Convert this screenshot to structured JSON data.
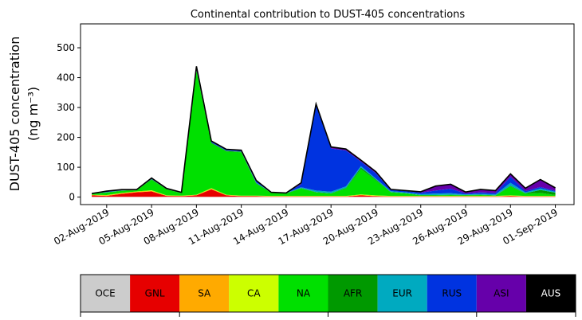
{
  "chart_data": {
    "type": "area",
    "title": "Continental contribution to DUST-405 concentrations",
    "ylabel": "DUST-405 concentration",
    "ylabel_unit": "(ng m⁻³)",
    "xlabel": "",
    "ylim": [
      -25,
      580
    ],
    "yticks": [
      0,
      100,
      200,
      300,
      400,
      500
    ],
    "xlim": [
      "2019-07-31T06:00",
      "2019-09-02T06:00"
    ],
    "xticks": [
      "02-Aug-2019",
      "05-Aug-2019",
      "08-Aug-2019",
      "11-Aug-2019",
      "14-Aug-2019",
      "17-Aug-2019",
      "20-Aug-2019",
      "23-Aug-2019",
      "26-Aug-2019",
      "29-Aug-2019",
      "01-Sep-2019"
    ],
    "x": [
      "2019-08-01",
      "2019-08-02",
      "2019-08-03",
      "2019-08-04",
      "2019-08-05",
      "2019-08-06",
      "2019-08-07",
      "2019-08-08",
      "2019-08-09",
      "2019-08-10",
      "2019-08-11",
      "2019-08-12",
      "2019-08-13",
      "2019-08-14",
      "2019-08-15",
      "2019-08-16",
      "2019-08-17",
      "2019-08-18",
      "2019-08-19",
      "2019-08-20",
      "2019-08-21",
      "2019-08-22",
      "2019-08-23",
      "2019-08-24",
      "2019-08-25",
      "2019-08-26",
      "2019-08-27",
      "2019-08-28",
      "2019-08-29",
      "2019-08-30",
      "2019-08-31",
      "2019-09-01"
    ],
    "series": [
      {
        "name": "OCE",
        "color": "#cccccc",
        "values": [
          1,
          1,
          1,
          1,
          1,
          1,
          1,
          1,
          1,
          1,
          1,
          1,
          1,
          1,
          1,
          1,
          1,
          1,
          1,
          1,
          1,
          1,
          1,
          1,
          1,
          1,
          1,
          1,
          1,
          1,
          1,
          1
        ]
      },
      {
        "name": "GNL",
        "color": "#e60000",
        "values": [
          5,
          3,
          10,
          15,
          18,
          3,
          2,
          5,
          25,
          5,
          2,
          2,
          1,
          1,
          1,
          1,
          1,
          1,
          5,
          2,
          1,
          1,
          1,
          1,
          1,
          1,
          1,
          1,
          2,
          1,
          1,
          1
        ]
      },
      {
        "name": "SA",
        "color": "#ffaa00",
        "values": [
          1,
          2,
          2,
          2,
          2,
          1,
          1,
          1,
          2,
          1,
          1,
          1,
          1,
          1,
          1,
          1,
          1,
          1,
          2,
          1,
          1,
          1,
          1,
          1,
          1,
          1,
          1,
          1,
          2,
          1,
          1,
          1
        ]
      },
      {
        "name": "CA",
        "color": "#ccff00",
        "values": [
          1,
          1,
          1,
          1,
          2,
          1,
          1,
          1,
          2,
          1,
          1,
          1,
          1,
          1,
          1,
          1,
          1,
          1,
          1,
          2,
          1,
          1,
          1,
          1,
          1,
          1,
          1,
          1,
          1,
          1,
          1,
          1
        ]
      },
      {
        "name": "NA",
        "color": "#00e000",
        "values": [
          3,
          8,
          7,
          4,
          35,
          20,
          8,
          415,
          150,
          145,
          145,
          40,
          10,
          8,
          25,
          12,
          8,
          25,
          85,
          50,
          12,
          8,
          2,
          2,
          3,
          2,
          3,
          1,
          30,
          8,
          10,
          3
        ]
      },
      {
        "name": "AFR",
        "color": "#009900",
        "values": [
          1,
          1,
          1,
          1,
          2,
          1,
          1,
          3,
          2,
          2,
          2,
          2,
          1,
          1,
          1,
          1,
          1,
          2,
          5,
          3,
          1,
          1,
          1,
          1,
          1,
          1,
          1,
          1,
          2,
          1,
          10,
          8
        ]
      },
      {
        "name": "EUR",
        "color": "#00aac0",
        "values": [
          0,
          1,
          1,
          1,
          1,
          1,
          1,
          2,
          1,
          1,
          1,
          2,
          1,
          1,
          3,
          5,
          5,
          5,
          5,
          3,
          3,
          3,
          3,
          5,
          5,
          2,
          3,
          3,
          10,
          3,
          5,
          3
        ]
      },
      {
        "name": "RUS",
        "color": "#0033e0",
        "values": [
          0,
          2,
          2,
          0,
          2,
          1,
          1,
          5,
          3,
          2,
          2,
          5,
          0,
          0,
          10,
          285,
          145,
          120,
          15,
          18,
          4,
          4,
          5,
          10,
          15,
          3,
          5,
          5,
          20,
          4,
          5,
          3
        ]
      },
      {
        "name": "ASI",
        "color": "#6600aa",
        "values": [
          0,
          1,
          0,
          0,
          1,
          0,
          0,
          5,
          2,
          2,
          2,
          2,
          0,
          0,
          5,
          5,
          5,
          5,
          5,
          5,
          2,
          2,
          3,
          15,
          15,
          5,
          10,
          8,
          10,
          10,
          25,
          10
        ]
      },
      {
        "name": "AUS",
        "color": "#000000",
        "values": [
          0,
          0,
          0,
          0,
          0,
          0,
          0,
          0,
          0,
          0,
          0,
          0,
          0,
          0,
          0,
          0,
          0,
          0,
          0,
          0,
          0,
          0,
          0,
          0,
          0,
          0,
          0,
          0,
          0,
          0,
          0,
          0
        ]
      }
    ],
    "legend_placement": "bottom color bar",
    "grid": false
  }
}
